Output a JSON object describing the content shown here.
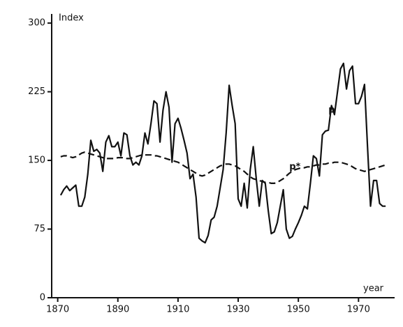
{
  "chart_data": {
    "type": "line",
    "y_label": "Index",
    "x_label": "year",
    "x": [
      1871,
      1872,
      1873,
      1874,
      1875,
      1876,
      1877,
      1878,
      1879,
      1880,
      1881,
      1882,
      1883,
      1884,
      1885,
      1886,
      1887,
      1888,
      1889,
      1890,
      1891,
      1892,
      1893,
      1894,
      1895,
      1896,
      1897,
      1898,
      1899,
      1900,
      1901,
      1902,
      1903,
      1904,
      1905,
      1906,
      1907,
      1908,
      1909,
      1910,
      1911,
      1912,
      1913,
      1914,
      1915,
      1916,
      1917,
      1918,
      1919,
      1920,
      1921,
      1922,
      1923,
      1924,
      1925,
      1926,
      1927,
      1928,
      1929,
      1930,
      1931,
      1932,
      1933,
      1934,
      1935,
      1936,
      1937,
      1938,
      1939,
      1940,
      1941,
      1942,
      1943,
      1944,
      1945,
      1946,
      1947,
      1948,
      1949,
      1950,
      1951,
      1952,
      1953,
      1954,
      1955,
      1956,
      1957,
      1958,
      1959,
      1960,
      1961,
      1962,
      1963,
      1964,
      1965,
      1966,
      1967,
      1968,
      1969,
      1970,
      1971,
      1972,
      1973,
      1974,
      1975,
      1976,
      1977,
      1978,
      1979
    ],
    "series": [
      {
        "name": "p",
        "color": "#111111",
        "dash": false,
        "values": [
          112,
          118,
          122,
          117,
          120,
          123,
          100,
          100,
          110,
          135,
          172,
          160,
          162,
          158,
          138,
          170,
          177,
          165,
          165,
          170,
          155,
          180,
          178,
          155,
          145,
          148,
          145,
          155,
          180,
          168,
          190,
          215,
          212,
          170,
          205,
          225,
          208,
          148,
          190,
          196,
          185,
          172,
          158,
          130,
          135,
          110,
          65,
          62,
          60,
          68,
          85,
          88,
          100,
          120,
          140,
          180,
          232,
          210,
          190,
          108,
          100,
          125,
          98,
          140,
          165,
          130,
          100,
          128,
          125,
          95,
          70,
          72,
          82,
          100,
          118,
          75,
          65,
          67,
          75,
          82,
          90,
          100,
          97,
          125,
          155,
          152,
          133,
          178,
          182,
          183,
          210,
          200,
          225,
          250,
          256,
          228,
          248,
          253,
          212,
          212,
          220,
          233,
          165,
          100,
          128,
          128,
          103,
          100,
          100
        ]
      },
      {
        "name": "p*",
        "color": "#111111",
        "dash": true,
        "values": [
          154,
          155,
          155,
          154,
          153,
          154,
          156,
          158,
          159,
          158,
          157,
          156,
          155,
          154,
          153,
          152,
          152,
          152,
          152,
          153,
          153,
          153,
          152,
          152,
          153,
          154,
          155,
          156,
          156,
          156,
          156,
          155,
          155,
          154,
          153,
          152,
          151,
          150,
          149,
          148,
          146,
          144,
          142,
          140,
          138,
          136,
          134,
          133,
          134,
          136,
          138,
          140,
          142,
          144,
          145,
          146,
          146,
          145,
          144,
          142,
          140,
          138,
          135,
          132,
          130,
          129,
          128,
          127,
          126,
          126,
          125,
          125,
          126,
          128,
          130,
          133,
          136,
          138,
          140,
          141,
          142,
          142,
          143,
          143,
          144,
          145,
          145,
          146,
          146,
          147,
          147,
          148,
          148,
          148,
          147,
          146,
          145,
          143,
          141,
          140,
          139,
          138,
          139,
          140,
          141,
          142,
          143,
          144,
          145
        ]
      }
    ],
    "annotations": [
      {
        "text": "p",
        "x": 1960,
        "y": 205
      },
      {
        "text": "p*",
        "x": 1947,
        "y": 143
      }
    ],
    "xlim": [
      1868,
      1982
    ],
    "ylim": [
      0,
      310
    ],
    "xticks": [
      1870,
      1890,
      1910,
      1930,
      1950,
      1970
    ],
    "yticks": [
      0,
      75,
      150,
      225,
      300
    ]
  }
}
